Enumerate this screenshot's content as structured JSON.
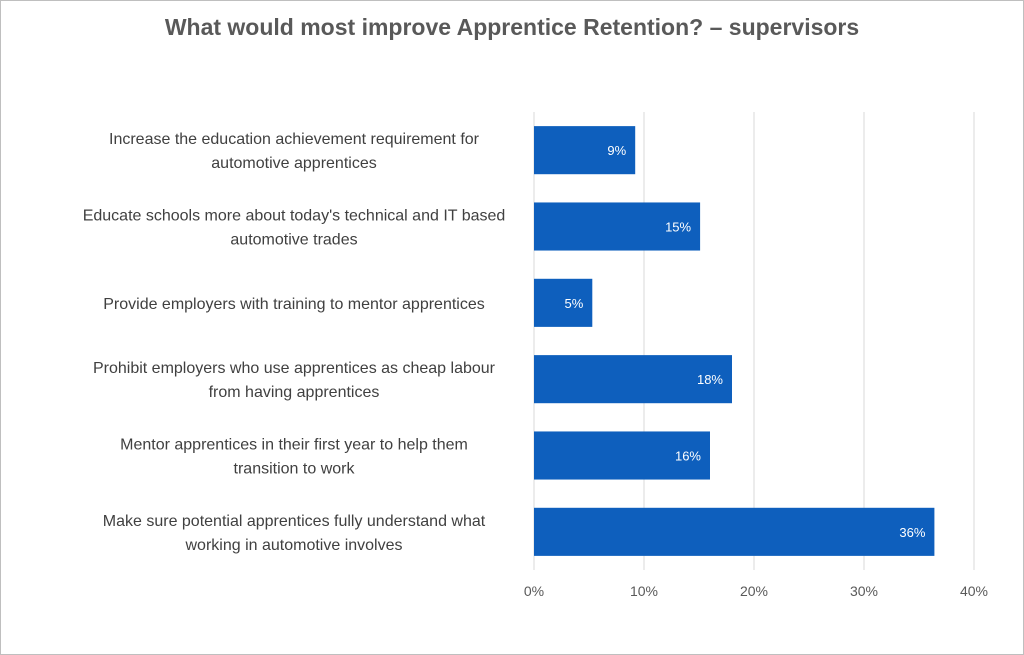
{
  "chart_data": {
    "type": "bar",
    "orientation": "horizontal",
    "title": "What would most improve Apprentice Retention? – supervisors",
    "categories": [
      [
        "Increase the education achievement requirement for",
        "automotive apprentices"
      ],
      [
        "Educate schools more about today's technical and IT based",
        "automotive trades"
      ],
      [
        "Provide employers with training to mentor apprentices"
      ],
      [
        "Prohibit employers who use apprentices as cheap labour",
        "from having apprentices"
      ],
      [
        "Mentor apprentices in their first year to help them",
        "transition to work"
      ],
      [
        "Make sure potential apprentices fully understand what",
        "working in automotive involves"
      ]
    ],
    "values": [
      9.2,
      15.1,
      5.3,
      18.0,
      16.0,
      36.4
    ],
    "data_labels": [
      "9%",
      "15%",
      "5%",
      "18%",
      "16%",
      "36%"
    ],
    "x_ticks": [
      "0%",
      "10%",
      "20%",
      "30%",
      "40%"
    ],
    "xlim": [
      0,
      40
    ],
    "grid": "vertical",
    "legend": "none",
    "bar_color": "#0e5fbd",
    "grid_color": "#d9d9d9",
    "xlabel": "",
    "ylabel": ""
  }
}
